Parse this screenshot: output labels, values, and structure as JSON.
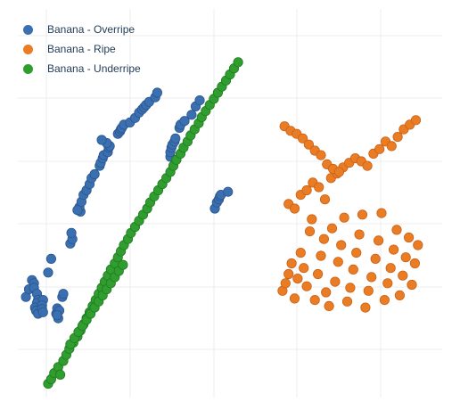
{
  "chart_data": {
    "type": "scatter",
    "grid": true,
    "legend_position": "top-left",
    "series": [
      {
        "name": "Banana - Overripe",
        "color": "#3a6fb0",
        "edge": "#2b5690",
        "x": [
          -2.1,
          -1.95,
          -1.8,
          -1.7,
          -1.7,
          -1.55,
          -1.5,
          -1.55,
          -1.65,
          -1.6,
          -1.5,
          -1.25,
          -1.3,
          -1.3,
          -1.25,
          -1.0,
          -0.85,
          -0.5,
          -0.6,
          -0.55,
          -0.45,
          -0.55,
          -0.3,
          -0.25,
          0.1,
          0.2,
          0.15,
          0.6,
          0.55,
          0.45,
          0.65,
          0.75,
          0.9,
          1.05,
          1.15,
          1.3,
          1.55,
          1.6,
          1.7,
          1.75,
          1.95,
          2.0,
          2.05,
          1.9,
          1.65,
          2.45,
          2.55,
          2.6,
          2.65,
          2.75,
          3.05,
          3.3,
          3.5,
          3.65,
          3.75,
          3.85,
          4.0,
          4.3,
          4.4,
          5.05,
          5.05,
          5.1,
          5.15,
          5.25,
          5.3,
          5.5,
          5.55,
          5.75,
          6.1,
          6.3,
          6.5,
          7.25,
          7.35,
          7.45,
          7.5,
          7.55,
          7.9
        ],
        "y": [
          1.1,
          1.6,
          2.2,
          2.0,
          1.7,
          1.3,
          0.9,
          0.7,
          0.4,
          0.2,
          0.0,
          0.9,
          0.55,
          0.3,
          0.1,
          2.7,
          3.6,
          -0.3,
          0.0,
          0.35,
          0.2,
          -0.1,
          1.1,
          1.3,
          4.6,
          4.9,
          5.3,
          6.7,
          7.0,
          6.8,
          7.35,
          7.8,
          8.1,
          8.5,
          8.9,
          9.15,
          9.7,
          9.9,
          10.2,
          10.4,
          10.6,
          10.9,
          11.0,
          11.2,
          11.4,
          11.8,
          11.95,
          12.1,
          12.2,
          12.4,
          12.55,
          12.85,
          13.2,
          13.4,
          13.55,
          13.7,
          13.9,
          14.2,
          14.5,
          10.3,
          10.6,
          10.9,
          11.1,
          11.3,
          11.5,
          12.2,
          12.4,
          12.65,
          13.05,
          13.6,
          14.0,
          6.9,
          7.3,
          7.5,
          7.7,
          7.8,
          8.0
        ],
        "label": "Banana - Overripe"
      },
      {
        "name": "Banana - Ripe",
        "color": "#ea7c24",
        "edge": "#c9621a",
        "x": [
          10.6,
          10.75,
          10.9,
          11.05,
          11.2,
          11.35,
          11.5,
          11.65,
          11.8,
          11.95,
          12.05,
          12.2,
          12.35,
          12.5,
          12.65,
          12.75,
          12.9,
          13.05,
          13.2,
          13.35,
          13.5,
          13.65,
          13.8,
          13.95,
          14.1,
          14.25,
          14.4,
          14.55,
          14.7,
          14.85,
          15.0,
          15.2,
          15.35,
          15.5,
          15.65,
          15.8,
          15.95,
          16.1,
          16.25,
          16.4,
          16.55,
          16.7,
          16.85,
          17.0,
          17.15,
          17.3,
          10.9,
          11.2,
          11.5,
          11.8,
          12.1,
          12.4,
          12.7,
          13.0,
          13.3,
          13.6,
          13.9,
          14.2,
          14.5,
          14.8,
          15.1,
          15.4,
          15.7,
          16.0,
          16.3,
          16.6,
          16.9,
          17.2,
          10.7,
          11.0,
          11.3,
          11.6,
          11.9,
          12.2,
          12.5,
          12.8,
          13.1,
          13.4
        ],
        "y": [
          1.5,
          2.0,
          2.6,
          3.3,
          1.0,
          2.3,
          4.0,
          3.0,
          1.8,
          5.4,
          6.2,
          0.9,
          2.6,
          3.8,
          4.9,
          1.4,
          0.5,
          5.6,
          2.1,
          3.4,
          4.5,
          6.3,
          0.8,
          1.7,
          2.9,
          4.0,
          5.2,
          6.5,
          0.4,
          1.5,
          2.4,
          3.6,
          4.8,
          6.6,
          0.9,
          2.0,
          3.0,
          4.2,
          5.5,
          1.2,
          2.5,
          3.7,
          5.0,
          1.9,
          3.3,
          4.5,
          7.2,
          6.9,
          7.8,
          8.1,
          8.6,
          8.3,
          7.5,
          8.9,
          9.2,
          9.6,
          9.9,
          10.2,
          10.0,
          9.7,
          10.5,
          10.8,
          11.3,
          11.0,
          11.6,
          12.1,
          12.4,
          12.7,
          12.3,
          12.0,
          11.8,
          11.5,
          11.1,
          10.7,
          10.4,
          9.8,
          9.5,
          9.3
        ],
        "label": "Banana - Ripe"
      },
      {
        "name": "Banana - Underripe",
        "color": "#2f9e2f",
        "edge": "#237a23",
        "x": [
          -1.0,
          -0.85,
          -0.7,
          -0.5,
          -0.4,
          -0.25,
          -0.1,
          0.05,
          0.25,
          0.45,
          0.6,
          0.75,
          0.9,
          1.05,
          1.2,
          1.35,
          1.5,
          1.65,
          1.8,
          1.95,
          2.1,
          2.3,
          2.45,
          2.6,
          2.75,
          2.95,
          3.1,
          3.3,
          3.5,
          3.7,
          3.9,
          4.05,
          4.25,
          4.45,
          4.65,
          4.85,
          5.05,
          5.2,
          5.35,
          5.55,
          5.7,
          5.9,
          6.05,
          6.25,
          6.45,
          6.6,
          6.8,
          7.0,
          7.2,
          7.4,
          7.6,
          7.8,
          8.0,
          8.2,
          8.4,
          0.1,
          0.3,
          0.5,
          0.7,
          0.9,
          1.1,
          1.3,
          1.5,
          1.7,
          1.9,
          2.1,
          2.3,
          2.5,
          2.7
        ],
        "y": [
          -4.6,
          -4.3,
          -3.9,
          -3.5,
          -4.0,
          -3.1,
          -2.7,
          -2.3,
          -1.9,
          -1.5,
          -1.1,
          -0.7,
          -0.3,
          0.1,
          0.5,
          0.9,
          1.3,
          1.7,
          2.1,
          2.5,
          2.9,
          3.3,
          3.7,
          4.1,
          4.5,
          4.9,
          5.3,
          5.7,
          6.1,
          6.5,
          6.9,
          7.3,
          7.7,
          8.1,
          8.5,
          8.9,
          9.3,
          9.7,
          10.1,
          10.5,
          10.9,
          11.3,
          11.7,
          12.1,
          12.5,
          12.9,
          13.3,
          13.7,
          14.1,
          14.5,
          14.9,
          15.3,
          15.7,
          16.1,
          16.5,
          -2.0,
          -1.6,
          -1.2,
          -0.8,
          -0.4,
          0.0,
          0.4,
          0.8,
          1.2,
          1.6,
          2.0,
          2.4,
          2.8,
          3.2
        ],
        "label": "Banana - Underripe"
      }
    ],
    "xlim": [
      -2.5,
      18.5
    ],
    "ylim": [
      -5.5,
      20.0
    ]
  }
}
